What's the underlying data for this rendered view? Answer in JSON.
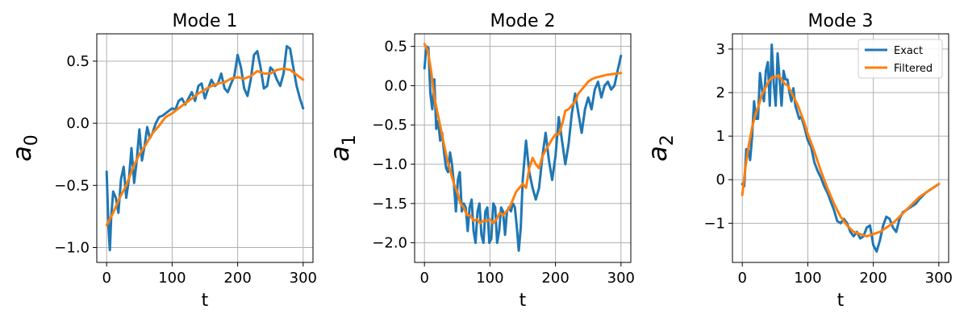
{
  "chart_data": [
    {
      "type": "line",
      "title": "Mode 1",
      "xlabel": "t",
      "ylabel": "a",
      "ylabel_sub": "0",
      "xlim": [
        -15,
        315
      ],
      "ylim": [
        -1.12,
        0.72
      ],
      "xticks": [
        0,
        100,
        200,
        300
      ],
      "xtick_labels": [
        "0",
        "100",
        "200",
        "300"
      ],
      "yticks": [
        -1.0,
        -0.5,
        0.0,
        0.5
      ],
      "ytick_labels": [
        "−1.0",
        "−0.5",
        "0.0",
        "0.5"
      ],
      "grid": true,
      "legend": false,
      "series": [
        {
          "name": "Exact",
          "color": "#1f77b4",
          "x": [
            0,
            3,
            5,
            7,
            10,
            14,
            18,
            22,
            26,
            30,
            34,
            38,
            42,
            46,
            50,
            54,
            58,
            62,
            66,
            70,
            75,
            80,
            85,
            90,
            95,
            100,
            105,
            110,
            115,
            120,
            125,
            130,
            135,
            140,
            145,
            150,
            155,
            160,
            165,
            170,
            175,
            180,
            185,
            190,
            195,
            200,
            205,
            210,
            215,
            220,
            225,
            230,
            235,
            240,
            245,
            250,
            255,
            260,
            265,
            270,
            275,
            280,
            285,
            290,
            295,
            300
          ],
          "values": [
            -0.39,
            -0.85,
            -1.02,
            -0.75,
            -0.55,
            -0.6,
            -0.72,
            -0.45,
            -0.35,
            -0.6,
            -0.45,
            -0.2,
            -0.48,
            -0.3,
            -0.05,
            -0.3,
            -0.18,
            -0.03,
            -0.12,
            -0.08,
            0.0,
            0.05,
            0.06,
            0.08,
            0.1,
            0.12,
            0.11,
            0.18,
            0.2,
            0.15,
            0.2,
            0.25,
            0.18,
            0.3,
            0.32,
            0.2,
            0.28,
            0.35,
            0.3,
            0.32,
            0.4,
            0.28,
            0.25,
            0.32,
            0.38,
            0.55,
            0.45,
            0.28,
            0.22,
            0.35,
            0.55,
            0.58,
            0.45,
            0.28,
            0.3,
            0.45,
            0.42,
            0.35,
            0.3,
            0.4,
            0.62,
            0.6,
            0.45,
            0.3,
            0.2,
            0.12
          ]
        },
        {
          "name": "Filtered",
          "color": "#ff7f0e",
          "x": [
            0,
            10,
            20,
            30,
            40,
            50,
            60,
            70,
            80,
            90,
            100,
            110,
            120,
            130,
            140,
            150,
            160,
            170,
            180,
            190,
            200,
            210,
            220,
            230,
            240,
            250,
            260,
            270,
            280,
            290,
            300
          ],
          "values": [
            -0.82,
            -0.72,
            -0.6,
            -0.5,
            -0.36,
            -0.25,
            -0.17,
            -0.08,
            -0.02,
            0.05,
            0.08,
            0.12,
            0.16,
            0.2,
            0.24,
            0.27,
            0.3,
            0.32,
            0.33,
            0.36,
            0.37,
            0.36,
            0.38,
            0.42,
            0.4,
            0.4,
            0.43,
            0.44,
            0.43,
            0.39,
            0.35
          ]
        }
      ]
    },
    {
      "type": "line",
      "title": "Mode 2",
      "xlabel": "t",
      "ylabel": "a",
      "ylabel_sub": "1",
      "xlim": [
        -15,
        315
      ],
      "ylim": [
        -2.25,
        0.66
      ],
      "xticks": [
        0,
        100,
        200,
        300
      ],
      "xtick_labels": [
        "0",
        "100",
        "200",
        "300"
      ],
      "yticks": [
        -2.0,
        -1.5,
        -1.0,
        -0.5,
        0.0,
        0.5
      ],
      "ytick_labels": [
        "−2.0",
        "−1.5",
        "−1.0",
        "−0.5",
        "0.0",
        "0.5"
      ],
      "grid": true,
      "legend": false,
      "series": [
        {
          "name": "Exact",
          "color": "#1f77b4",
          "x": [
            0,
            3,
            6,
            9,
            12,
            15,
            18,
            21,
            24,
            27,
            30,
            33,
            36,
            39,
            42,
            45,
            48,
            51,
            54,
            57,
            60,
            63,
            66,
            69,
            72,
            75,
            78,
            81,
            84,
            87,
            90,
            93,
            96,
            99,
            102,
            105,
            108,
            111,
            114,
            117,
            120,
            123,
            126,
            129,
            132,
            135,
            138,
            141,
            144,
            147,
            150,
            155,
            160,
            165,
            170,
            175,
            180,
            185,
            190,
            195,
            200,
            205,
            210,
            215,
            220,
            225,
            230,
            235,
            240,
            245,
            250,
            255,
            260,
            265,
            270,
            275,
            280,
            285,
            290,
            295,
            300
          ],
          "values": [
            0.22,
            0.5,
            0.48,
            -0.1,
            -0.3,
            0.08,
            -0.55,
            -0.45,
            -0.7,
            -0.6,
            -0.85,
            -1.05,
            -1.1,
            -0.85,
            -1.0,
            -1.25,
            -1.6,
            -1.2,
            -1.1,
            -1.6,
            -1.5,
            -1.55,
            -1.85,
            -1.55,
            -1.45,
            -1.85,
            -2.0,
            -1.6,
            -1.5,
            -1.9,
            -2.0,
            -1.6,
            -1.55,
            -2.0,
            -1.95,
            -1.5,
            -1.55,
            -2.0,
            -1.85,
            -1.55,
            -1.6,
            -1.9,
            -1.6,
            -1.55,
            -1.6,
            -1.5,
            -1.55,
            -1.8,
            -2.1,
            -1.8,
            -1.2,
            -0.7,
            -1.1,
            -1.3,
            -1.45,
            -1.3,
            -0.9,
            -0.6,
            -0.95,
            -1.2,
            -0.9,
            -0.4,
            -0.7,
            -1.0,
            -0.75,
            -0.35,
            -0.1,
            -0.35,
            -0.6,
            -0.3,
            -0.15,
            -0.3,
            -0.05,
            0.05,
            -0.15,
            0.0,
            0.05,
            -0.05,
            0.0,
            0.2,
            0.38
          ]
        },
        {
          "name": "Filtered",
          "color": "#ff7f0e",
          "x": [
            0,
            5,
            10,
            15,
            20,
            25,
            30,
            35,
            40,
            45,
            50,
            55,
            60,
            65,
            70,
            75,
            80,
            85,
            90,
            95,
            100,
            105,
            110,
            115,
            120,
            125,
            130,
            135,
            140,
            145,
            150,
            155,
            160,
            165,
            170,
            175,
            180,
            185,
            190,
            195,
            200,
            205,
            210,
            215,
            220,
            225,
            230,
            235,
            240,
            245,
            250,
            255,
            260,
            270,
            280,
            290,
            300
          ],
          "values": [
            0.53,
            0.45,
            0.2,
            -0.15,
            -0.35,
            -0.55,
            -0.75,
            -0.95,
            -1.1,
            -1.25,
            -1.35,
            -1.5,
            -1.55,
            -1.65,
            -1.65,
            -1.72,
            -1.7,
            -1.75,
            -1.72,
            -1.72,
            -1.7,
            -1.75,
            -1.7,
            -1.62,
            -1.65,
            -1.6,
            -1.55,
            -1.45,
            -1.35,
            -1.3,
            -1.25,
            -1.3,
            -1.05,
            -0.92,
            -1.0,
            -1.05,
            -0.9,
            -0.82,
            -0.75,
            -0.68,
            -0.62,
            -0.62,
            -0.5,
            -0.32,
            -0.3,
            -0.25,
            -0.2,
            -0.1,
            -0.05,
            0.0,
            0.05,
            0.08,
            0.1,
            0.12,
            0.14,
            0.15,
            0.16
          ]
        }
      ]
    },
    {
      "type": "line",
      "title": "Mode 3",
      "xlabel": "t",
      "ylabel": "a",
      "ylabel_sub": "2",
      "xlim": [
        -15,
        315
      ],
      "ylim": [
        -1.9,
        3.35
      ],
      "xticks": [
        0,
        100,
        200,
        300
      ],
      "xtick_labels": [
        "0",
        "100",
        "200",
        "300"
      ],
      "yticks": [
        -1,
        0,
        1,
        2,
        3
      ],
      "ytick_labels": [
        "−1",
        "0",
        "1",
        "2",
        "3"
      ],
      "grid": true,
      "legend": true,
      "legend_position": "top-right",
      "series": [
        {
          "name": "Exact",
          "color": "#1f77b4",
          "x": [
            0,
            3,
            6,
            9,
            12,
            15,
            18,
            21,
            24,
            27,
            30,
            33,
            36,
            39,
            42,
            45,
            48,
            51,
            54,
            57,
            60,
            63,
            66,
            69,
            72,
            75,
            78,
            81,
            84,
            87,
            90,
            95,
            100,
            105,
            110,
            115,
            120,
            125,
            130,
            135,
            140,
            145,
            150,
            155,
            160,
            165,
            170,
            175,
            180,
            185,
            190,
            195,
            200,
            205,
            210,
            215,
            220,
            225,
            230,
            235,
            240,
            245,
            250,
            255,
            260,
            265,
            270,
            280,
            290,
            300
          ],
          "values": [
            -0.1,
            -0.15,
            0.7,
            0.7,
            0.45,
            1.0,
            1.8,
            1.4,
            1.4,
            2.45,
            2.1,
            1.8,
            2.5,
            2.7,
            1.7,
            3.1,
            2.2,
            1.7,
            2.9,
            2.3,
            1.7,
            2.5,
            2.3,
            2.3,
            2.0,
            1.8,
            2.1,
            1.7,
            1.55,
            1.4,
            1.45,
            1.2,
            0.9,
            0.75,
            0.4,
            0.2,
            0.05,
            -0.15,
            -0.3,
            -0.5,
            -0.7,
            -0.95,
            -1.0,
            -0.9,
            -1.0,
            -1.2,
            -1.3,
            -1.2,
            -1.35,
            -1.3,
            -1.1,
            -1.05,
            -1.5,
            -1.65,
            -1.4,
            -1.05,
            -0.85,
            -0.9,
            -1.1,
            -1.2,
            -0.9,
            -0.75,
            -0.7,
            -0.65,
            -0.6,
            -0.55,
            -0.45,
            -0.3,
            -0.2,
            -0.1
          ]
        },
        {
          "name": "Filtered",
          "color": "#ff7f0e",
          "x": [
            0,
            5,
            10,
            15,
            20,
            25,
            30,
            35,
            40,
            45,
            50,
            55,
            60,
            65,
            70,
            75,
            80,
            85,
            90,
            95,
            100,
            110,
            120,
            130,
            140,
            150,
            160,
            170,
            180,
            190,
            200,
            210,
            220,
            230,
            240,
            250,
            260,
            270,
            280,
            290,
            300
          ],
          "values": [
            -0.35,
            0.3,
            0.8,
            1.2,
            1.5,
            1.7,
            1.95,
            2.1,
            2.25,
            2.35,
            2.35,
            2.4,
            2.3,
            2.2,
            2.15,
            2.0,
            1.85,
            1.7,
            1.5,
            1.3,
            1.05,
            0.65,
            0.2,
            -0.2,
            -0.55,
            -0.85,
            -1.05,
            -1.2,
            -1.25,
            -1.3,
            -1.25,
            -1.2,
            -1.1,
            -1.0,
            -0.85,
            -0.7,
            -0.55,
            -0.4,
            -0.3,
            -0.2,
            -0.1
          ]
        }
      ]
    }
  ]
}
